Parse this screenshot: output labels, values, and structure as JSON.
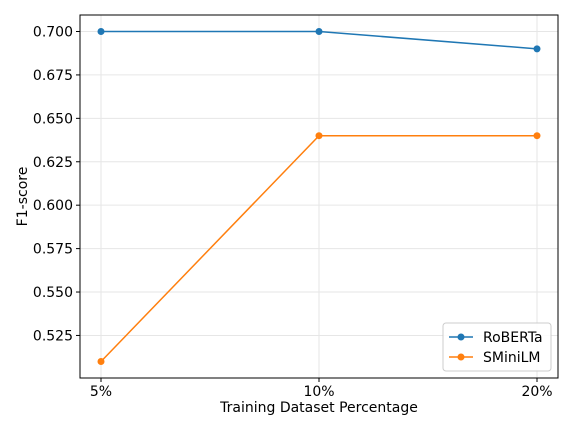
{
  "chart_data": {
    "type": "line",
    "title": "",
    "xlabel": "Training Dataset Percentage",
    "ylabel": "F1-score",
    "categories": [
      "5%",
      "10%",
      "20%"
    ],
    "series": [
      {
        "name": "RoBERTa",
        "color": "#1f77b4",
        "values": [
          0.7,
          0.7,
          0.69
        ]
      },
      {
        "name": "SMiniLM",
        "color": "#ff7f0e",
        "values": [
          0.51,
          0.64,
          0.64
        ]
      }
    ],
    "yticks": [
      0.525,
      0.55,
      0.575,
      0.6,
      0.625,
      0.65,
      0.675,
      0.7
    ],
    "ytick_labels": [
      "0.525",
      "0.550",
      "0.575",
      "0.600",
      "0.625",
      "0.650",
      "0.675",
      "0.700"
    ],
    "ylim": [
      0.5005,
      0.7095
    ],
    "grid": true,
    "legend_position": "bottom-right"
  }
}
